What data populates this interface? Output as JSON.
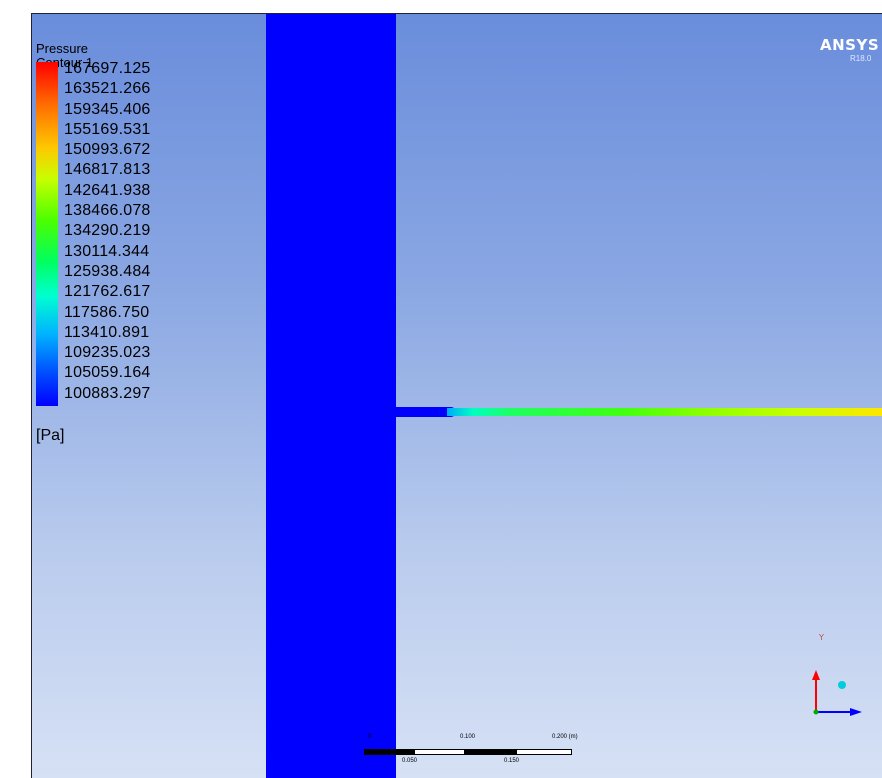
{
  "legend": {
    "title": "Pressure",
    "subtitle": "Contour 1",
    "values": [
      "167697.125",
      "163521.266",
      "159345.406",
      "155169.531",
      "150993.672",
      "146817.813",
      "142641.938",
      "138466.078",
      "134290.219",
      "130114.344",
      "125938.484",
      "121762.617",
      "117586.750",
      "113410.891",
      "109235.023",
      "105059.164",
      "100883.297"
    ],
    "unit": "[Pa]",
    "colors": [
      "#ff0000",
      "#ff6a00",
      "#ffc800",
      "#4cff00",
      "#00ffd0",
      "#0050ff",
      "#0000ff"
    ]
  },
  "branding": {
    "logo": "ANSYS",
    "version": "R18.0"
  },
  "scale_bar": {
    "top_labels": [
      "0",
      "0.100",
      "0.200 (m)"
    ],
    "bottom_labels": [
      "0.050",
      "0.150"
    ]
  },
  "triad": {
    "axis_y_label": "Y",
    "axis_x_label": "X"
  }
}
